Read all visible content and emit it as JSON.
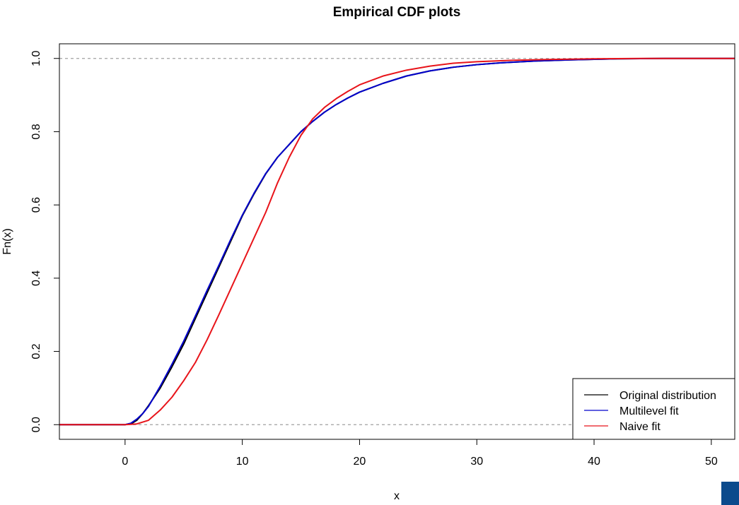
{
  "chart_data": {
    "type": "line",
    "title": "Empirical CDF plots",
    "xlabel": "x",
    "ylabel": "Fn(x)",
    "xlim": [
      -5.6,
      52.0
    ],
    "ylim": [
      -0.04,
      1.04
    ],
    "x_ticks": [
      "0",
      "10",
      "20",
      "30",
      "40",
      "50"
    ],
    "y_ticks": [
      "0.0",
      "0.2",
      "0.4",
      "0.6",
      "0.8",
      "1.0"
    ],
    "reference_lines_y": [
      0,
      1
    ],
    "legend_position": "bottom-right",
    "series": [
      {
        "name": "Original distribution",
        "color": "#000000",
        "points": [
          [
            -5.6,
            0
          ],
          [
            0,
            0
          ],
          [
            0.6,
            0.004
          ],
          [
            1,
            0.012
          ],
          [
            1.5,
            0.03
          ],
          [
            2,
            0.052
          ],
          [
            3,
            0.1
          ],
          [
            4,
            0.158
          ],
          [
            5,
            0.22
          ],
          [
            6,
            0.29
          ],
          [
            7,
            0.36
          ],
          [
            8,
            0.43
          ],
          [
            9,
            0.5
          ],
          [
            10,
            0.57
          ],
          [
            11,
            0.63
          ],
          [
            12,
            0.685
          ],
          [
            13,
            0.73
          ],
          [
            14,
            0.765
          ],
          [
            15,
            0.8
          ],
          [
            16,
            0.828
          ],
          [
            17,
            0.853
          ],
          [
            18,
            0.874
          ],
          [
            19,
            0.892
          ],
          [
            20,
            0.908
          ],
          [
            22,
            0.932
          ],
          [
            24,
            0.952
          ],
          [
            26,
            0.966
          ],
          [
            28,
            0.976
          ],
          [
            30,
            0.983
          ],
          [
            32,
            0.988
          ],
          [
            35,
            0.993
          ],
          [
            38,
            0.996
          ],
          [
            42,
            0.999
          ],
          [
            46,
            1
          ],
          [
            52,
            1
          ]
        ]
      },
      {
        "name": "Multilevel fit",
        "color": "#0000cc",
        "points": [
          [
            -5.6,
            0
          ],
          [
            0,
            0
          ],
          [
            0.5,
            0.004
          ],
          [
            1,
            0.015
          ],
          [
            1.5,
            0.03
          ],
          [
            2,
            0.05
          ],
          [
            3,
            0.105
          ],
          [
            4,
            0.165
          ],
          [
            5,
            0.228
          ],
          [
            6,
            0.297
          ],
          [
            7,
            0.367
          ],
          [
            8,
            0.435
          ],
          [
            9,
            0.505
          ],
          [
            10,
            0.572
          ],
          [
            11,
            0.632
          ],
          [
            12,
            0.686
          ],
          [
            13,
            0.73
          ],
          [
            14,
            0.765
          ],
          [
            15,
            0.8
          ],
          [
            16,
            0.828
          ],
          [
            17,
            0.853
          ],
          [
            18,
            0.874
          ],
          [
            19,
            0.892
          ],
          [
            20,
            0.908
          ],
          [
            22,
            0.932
          ],
          [
            24,
            0.952
          ],
          [
            26,
            0.966
          ],
          [
            28,
            0.976
          ],
          [
            30,
            0.983
          ],
          [
            32,
            0.988
          ],
          [
            35,
            0.993
          ],
          [
            38,
            0.996
          ],
          [
            42,
            0.999
          ],
          [
            46,
            1
          ],
          [
            52,
            1
          ]
        ]
      },
      {
        "name": "Naive fit",
        "color": "#e8141a",
        "points": [
          [
            -5.6,
            0
          ],
          [
            0,
            0
          ],
          [
            1,
            0.002
          ],
          [
            2,
            0.012
          ],
          [
            3,
            0.04
          ],
          [
            4,
            0.075
          ],
          [
            5,
            0.12
          ],
          [
            6,
            0.17
          ],
          [
            7,
            0.232
          ],
          [
            8,
            0.3
          ],
          [
            9,
            0.37
          ],
          [
            10,
            0.44
          ],
          [
            11,
            0.51
          ],
          [
            12,
            0.58
          ],
          [
            13,
            0.66
          ],
          [
            14,
            0.73
          ],
          [
            15,
            0.79
          ],
          [
            16,
            0.835
          ],
          [
            17,
            0.866
          ],
          [
            18,
            0.89
          ],
          [
            19,
            0.91
          ],
          [
            20,
            0.928
          ],
          [
            22,
            0.952
          ],
          [
            24,
            0.968
          ],
          [
            26,
            0.979
          ],
          [
            28,
            0.987
          ],
          [
            30,
            0.991
          ],
          [
            33,
            0.995
          ],
          [
            36,
            0.997
          ],
          [
            40,
            0.999
          ],
          [
            44,
            1
          ],
          [
            52,
            1
          ]
        ]
      }
    ]
  },
  "accent_color": "#0b4a8c"
}
